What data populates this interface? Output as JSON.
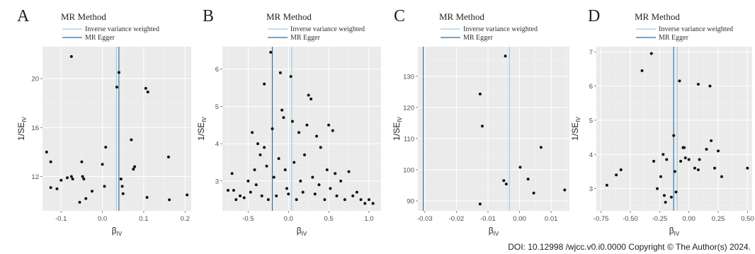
{
  "footer": "DOI: 10.12998 /wjcc.v0.i0.0000  Copyright © The Author(s) 2024.",
  "colors": {
    "ivw": "#9ecae1",
    "egger": "#2b6c9f",
    "point": "#111111",
    "panel_bg": "#ebebeb",
    "grid_major": "#ffffff"
  },
  "chart_data": [
    {
      "type": "scatter",
      "panel_label": "A",
      "legend_title": "MR Method",
      "legend_entries": [
        "Inverse variance weighted",
        "MR Egger"
      ],
      "xlabel": "β",
      "xlabel_sub": "IV",
      "ylabel": "1/SE",
      "ylabel_sub": "IV",
      "xlim": [
        -0.145,
        0.215
      ],
      "ylim": [
        9.2,
        22.6
      ],
      "xticks": [
        {
          "v": -0.1,
          "label": "-0.1"
        },
        {
          "v": 0.0,
          "label": "0.0"
        },
        {
          "v": 0.1,
          "label": "0.1"
        },
        {
          "v": 0.2,
          "label": "0.2"
        }
      ],
      "yticks": [
        {
          "v": 12,
          "label": "12"
        },
        {
          "v": 16,
          "label": "16"
        },
        {
          "v": 20,
          "label": "20"
        }
      ],
      "vlines": {
        "ivw": 0.034,
        "egger": 0.04
      },
      "points": [
        [
          -0.135,
          14.0
        ],
        [
          -0.125,
          13.2
        ],
        [
          -0.125,
          11.1
        ],
        [
          -0.11,
          11.0
        ],
        [
          -0.1,
          11.7
        ],
        [
          -0.085,
          11.9
        ],
        [
          -0.075,
          21.8
        ],
        [
          -0.075,
          12.0
        ],
        [
          -0.072,
          11.8
        ],
        [
          -0.055,
          9.9
        ],
        [
          -0.05,
          13.2
        ],
        [
          -0.048,
          12.0
        ],
        [
          -0.045,
          11.8
        ],
        [
          -0.04,
          10.2
        ],
        [
          -0.025,
          10.8
        ],
        [
          0.0,
          13.0
        ],
        [
          0.005,
          11.2
        ],
        [
          0.008,
          14.4
        ],
        [
          0.035,
          19.3
        ],
        [
          0.04,
          20.5
        ],
        [
          0.045,
          11.8
        ],
        [
          0.048,
          11.2
        ],
        [
          0.05,
          10.6
        ],
        [
          0.07,
          15.0
        ],
        [
          0.075,
          12.6
        ],
        [
          0.078,
          12.8
        ],
        [
          0.105,
          19.2
        ],
        [
          0.11,
          18.9
        ],
        [
          0.108,
          10.3
        ],
        [
          0.16,
          13.6
        ],
        [
          0.162,
          10.1
        ],
        [
          0.205,
          10.5
        ]
      ]
    },
    {
      "type": "scatter",
      "panel_label": "B",
      "legend_title": "MR Method",
      "legend_entries": [
        "Inverse variance weighted",
        "MR Egger"
      ],
      "xlabel": "β",
      "xlabel_sub": "IV",
      "ylabel": "1/SE",
      "ylabel_sub": "IV",
      "xlim": [
        -0.82,
        1.15
      ],
      "ylim": [
        2.2,
        6.6
      ],
      "xticks": [
        {
          "v": -0.5,
          "label": "-0.5"
        },
        {
          "v": 0.0,
          "label": "0.0"
        },
        {
          "v": 0.5,
          "label": "0.5"
        },
        {
          "v": 1.0,
          "label": "1.0"
        }
      ],
      "yticks": [
        {
          "v": 3,
          "label": "3"
        },
        {
          "v": 4,
          "label": "4"
        },
        {
          "v": 5,
          "label": "5"
        },
        {
          "v": 6,
          "label": "6"
        }
      ],
      "vlines": {
        "ivw": 0.04,
        "egger": -0.2
      },
      "points": [
        [
          -0.75,
          2.75
        ],
        [
          -0.7,
          3.2
        ],
        [
          -0.68,
          2.75
        ],
        [
          -0.65,
          2.5
        ],
        [
          -0.6,
          2.6
        ],
        [
          -0.55,
          2.55
        ],
        [
          -0.5,
          3.0
        ],
        [
          -0.47,
          2.7
        ],
        [
          -0.45,
          4.3
        ],
        [
          -0.42,
          3.3
        ],
        [
          -0.4,
          2.9
        ],
        [
          -0.38,
          4.0
        ],
        [
          -0.35,
          3.7
        ],
        [
          -0.33,
          2.6
        ],
        [
          -0.3,
          5.6
        ],
        [
          -0.3,
          3.9
        ],
        [
          -0.27,
          3.4
        ],
        [
          -0.25,
          2.5
        ],
        [
          -0.22,
          6.45
        ],
        [
          -0.2,
          4.4
        ],
        [
          -0.18,
          3.1
        ],
        [
          -0.15,
          2.6
        ],
        [
          -0.12,
          3.6
        ],
        [
          -0.1,
          5.9
        ],
        [
          -0.08,
          4.9
        ],
        [
          -0.06,
          4.7
        ],
        [
          -0.04,
          3.3
        ],
        [
          -0.02,
          2.8
        ],
        [
          0.0,
          2.65
        ],
        [
          0.03,
          5.8
        ],
        [
          0.05,
          4.6
        ],
        [
          0.07,
          3.5
        ],
        [
          0.1,
          2.5
        ],
        [
          0.13,
          4.3
        ],
        [
          0.15,
          3.0
        ],
        [
          0.18,
          2.7
        ],
        [
          0.2,
          3.7
        ],
        [
          0.23,
          4.5
        ],
        [
          0.25,
          5.3
        ],
        [
          0.28,
          5.2
        ],
        [
          0.3,
          3.1
        ],
        [
          0.33,
          2.65
        ],
        [
          0.35,
          4.2
        ],
        [
          0.38,
          2.9
        ],
        [
          0.4,
          3.9
        ],
        [
          0.45,
          2.5
        ],
        [
          0.48,
          3.3
        ],
        [
          0.5,
          4.5
        ],
        [
          0.52,
          2.8
        ],
        [
          0.55,
          4.35
        ],
        [
          0.58,
          3.2
        ],
        [
          0.6,
          2.6
        ],
        [
          0.65,
          3.0
        ],
        [
          0.7,
          2.5
        ],
        [
          0.75,
          3.25
        ],
        [
          0.8,
          2.6
        ],
        [
          0.85,
          2.7
        ],
        [
          0.9,
          2.5
        ],
        [
          0.95,
          2.4
        ],
        [
          1.0,
          2.5
        ],
        [
          1.05,
          2.4
        ]
      ]
    },
    {
      "type": "scatter",
      "panel_label": "C",
      "legend_title": "MR Method",
      "legend_entries": [
        "Inverse variance weighted",
        "MR Egger"
      ],
      "xlabel": "β",
      "xlabel_sub": "IV",
      "ylabel": "1/SE",
      "ylabel_sub": "IV",
      "xlim": [
        -0.0322,
        0.0158
      ],
      "ylim": [
        86.8,
        139.5
      ],
      "xticks": [
        {
          "v": -0.03,
          "label": "-0.03"
        },
        {
          "v": -0.02,
          "label": "-0.02"
        },
        {
          "v": -0.01,
          "label": "-0.01"
        },
        {
          "v": 0.0,
          "label": "0.00"
        },
        {
          "v": 0.01,
          "label": "0.01"
        }
      ],
      "yticks": [
        {
          "v": 90,
          "label": "90"
        },
        {
          "v": 100,
          "label": "100"
        },
        {
          "v": 110,
          "label": "110"
        },
        {
          "v": 120,
          "label": "120"
        },
        {
          "v": 130,
          "label": "130"
        }
      ],
      "vlines": {
        "ivw": -0.0032,
        "egger": -0.0305
      },
      "points": [
        [
          -0.0125,
          124.3
        ],
        [
          -0.0118,
          114.0
        ],
        [
          -0.0125,
          89.0
        ],
        [
          -0.0045,
          136.5
        ],
        [
          -0.005,
          96.5
        ],
        [
          -0.0042,
          95.4
        ],
        [
          0.0002,
          100.8
        ],
        [
          0.0027,
          97.0
        ],
        [
          0.0045,
          92.5
        ],
        [
          0.0068,
          107.2
        ],
        [
          0.0143,
          93.5
        ]
      ]
    },
    {
      "type": "scatter",
      "panel_label": "D",
      "legend_title": "MR Method",
      "legend_entries": [
        "Inverse variance weighted",
        "MR Egger"
      ],
      "xlabel": "β",
      "xlabel_sub": "IV",
      "ylabel": "1/SE",
      "ylabel_sub": "IV",
      "xlim": [
        -0.79,
        0.54
      ],
      "ylim": [
        2.35,
        7.15
      ],
      "xticks": [
        {
          "v": -0.75,
          "label": "-0.75"
        },
        {
          "v": -0.5,
          "label": "-0.50"
        },
        {
          "v": -0.25,
          "label": "-0.25"
        },
        {
          "v": 0.0,
          "label": "0.00"
        },
        {
          "v": 0.25,
          "label": "0.25"
        },
        {
          "v": 0.5,
          "label": "0.50"
        }
      ],
      "yticks": [
        {
          "v": 3,
          "label": "3"
        },
        {
          "v": 4,
          "label": "4"
        },
        {
          "v": 5,
          "label": "5"
        },
        {
          "v": 6,
          "label": "6"
        },
        {
          "v": 7,
          "label": "7"
        }
      ],
      "vlines": {
        "ivw": -0.1,
        "egger": -0.13
      },
      "points": [
        [
          -0.7,
          3.1
        ],
        [
          -0.62,
          3.4
        ],
        [
          -0.58,
          3.55
        ],
        [
          -0.4,
          6.45
        ],
        [
          -0.32,
          6.95
        ],
        [
          -0.3,
          3.8
        ],
        [
          -0.27,
          3.0
        ],
        [
          -0.24,
          3.35
        ],
        [
          -0.22,
          4.0
        ],
        [
          -0.21,
          2.8
        ],
        [
          -0.2,
          2.6
        ],
        [
          -0.19,
          3.85
        ],
        [
          -0.15,
          2.75
        ],
        [
          -0.13,
          4.55
        ],
        [
          -0.12,
          3.5
        ],
        [
          -0.11,
          2.9
        ],
        [
          -0.08,
          6.15
        ],
        [
          -0.07,
          3.8
        ],
        [
          -0.05,
          4.2
        ],
        [
          -0.04,
          4.2
        ],
        [
          -0.03,
          3.9
        ],
        [
          0.0,
          3.85
        ],
        [
          0.05,
          3.6
        ],
        [
          0.08,
          3.55
        ],
        [
          0.08,
          6.05
        ],
        [
          0.09,
          3.85
        ],
        [
          0.15,
          4.15
        ],
        [
          0.18,
          6.0
        ],
        [
          0.19,
          4.4
        ],
        [
          0.22,
          3.6
        ],
        [
          0.25,
          4.1
        ],
        [
          0.28,
          3.35
        ],
        [
          0.5,
          3.6
        ]
      ]
    }
  ]
}
